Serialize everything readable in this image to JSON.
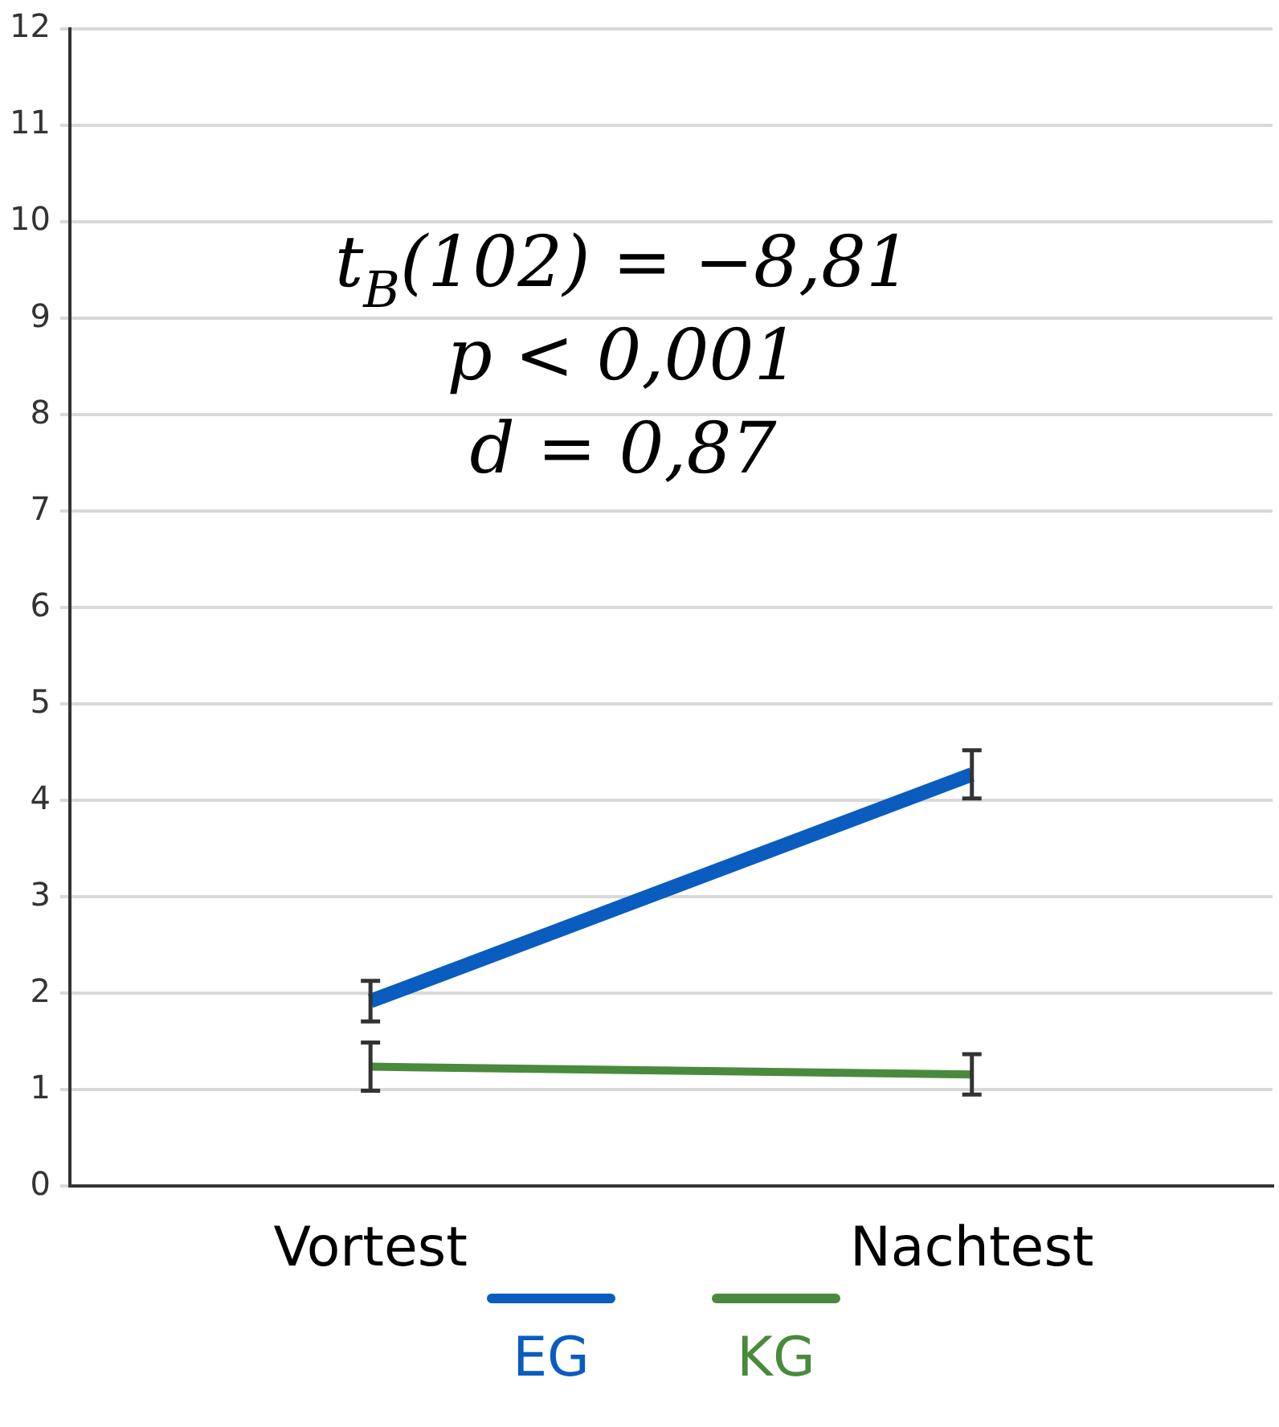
{
  "chart_data": {
    "type": "line",
    "categories": [
      "Vortest",
      "Nachtest"
    ],
    "series": [
      {
        "name": "EG",
        "color": "#0a5cbf",
        "values": [
          1.92,
          4.27
        ],
        "errors": [
          0.21,
          0.25
        ]
      },
      {
        "name": "KG",
        "color": "#4a8a3c",
        "values": [
          1.24,
          1.16
        ],
        "errors": [
          0.25,
          0.21
        ]
      }
    ],
    "ylim": [
      0,
      12
    ],
    "yticks": [
      0,
      1,
      2,
      3,
      4,
      5,
      6,
      7,
      8,
      9,
      10,
      11,
      12
    ],
    "grid": "y",
    "legend": "bottom",
    "marker": "none",
    "line_style": "solid",
    "annotations": [
      "t$_{B}$(102) = −8,81",
      "p < 0,001",
      "d = 0,87"
    ]
  }
}
